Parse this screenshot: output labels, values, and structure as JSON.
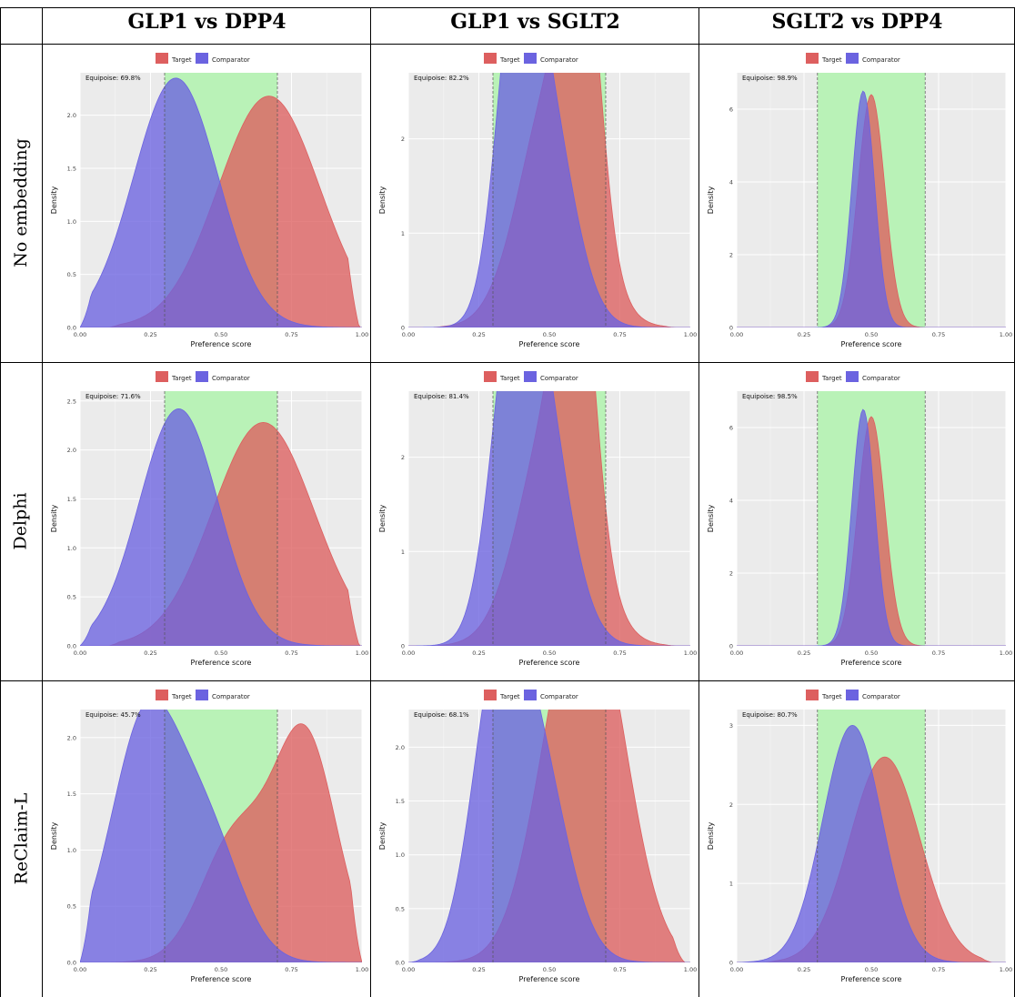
{
  "columns": [
    "GLP1 vs DPP4",
    "GLP1 vs SGLT2",
    "SGLT2 vs DPP4"
  ],
  "rows": [
    "No embedding",
    "Delphi",
    "ReClaim-L"
  ],
  "colors": {
    "target": "#dd5f5f",
    "comparator": "#6b63e0",
    "equipoise_band": "#b9f2b7",
    "panel_bg": "#ebebeb"
  },
  "chart_data": [
    {
      "type": "area",
      "row": "No embedding",
      "column": "GLP1 vs DPP4",
      "legend": [
        "Target",
        "Comparator"
      ],
      "annotation": "Equipoise: 69.8%",
      "xlabel": "Preference score",
      "ylabel": "Density",
      "xlim": [
        0,
        1
      ],
      "ylim": [
        0,
        2.4
      ],
      "yticks": [
        0,
        0.5,
        1,
        1.5,
        2
      ],
      "ytick_labels": [
        "0.0",
        "0.5",
        "1.0",
        "1.5",
        "2.0"
      ],
      "xticks": [
        0,
        0.25,
        0.5,
        0.75,
        1
      ],
      "xtick_labels": [
        "0.00",
        "0.25",
        "0.50",
        "0.75",
        "1.00"
      ],
      "equipoise": [
        0.3,
        0.7
      ],
      "series": [
        {
          "name": "Target",
          "peaks": [
            [
              0.67,
              2.18,
              0.18
            ]
          ],
          "range": [
            0.1,
            0.99
          ]
        },
        {
          "name": "Comparator",
          "peaks": [
            [
              0.34,
              2.35,
              0.15
            ]
          ],
          "range": [
            0,
            0.96
          ]
        }
      ]
    },
    {
      "type": "area",
      "row": "No embedding",
      "column": "GLP1 vs SGLT2",
      "legend": [
        "Target",
        "Comparator"
      ],
      "annotation": "Equipoise: 82.2%",
      "xlabel": "Preference score",
      "ylabel": "Density",
      "xlim": [
        0,
        1
      ],
      "ylim": [
        0,
        2.7
      ],
      "yticks": [
        0,
        1,
        2
      ],
      "ytick_labels": [
        "0",
        "1",
        "2"
      ],
      "xticks": [
        0,
        0.25,
        0.5,
        0.75,
        1
      ],
      "xtick_labels": [
        "0.00",
        "0.25",
        "0.50",
        "0.75",
        "1.00"
      ],
      "equipoise": [
        0.3,
        0.7
      ],
      "series": [
        {
          "name": "Target",
          "peaks": [
            [
              0.52,
              2.6,
              0.12
            ],
            [
              0.62,
              2.6,
              0.06
            ]
          ],
          "range": [
            0.08,
            0.95
          ]
        },
        {
          "name": "Comparator",
          "peaks": [
            [
              0.38,
              2.6,
              0.07
            ],
            [
              0.48,
              2.4,
              0.1
            ]
          ],
          "range": [
            0,
            0.9
          ]
        }
      ]
    },
    {
      "type": "area",
      "row": "No embedding",
      "column": "SGLT2 vs DPP4",
      "legend": [
        "Target",
        "Comparator"
      ],
      "annotation": "Equipoise: 98.9%",
      "xlabel": "Preference score",
      "ylabel": "Density",
      "xlim": [
        0,
        1
      ],
      "ylim": [
        0,
        7
      ],
      "yticks": [
        0,
        2,
        4,
        6
      ],
      "ytick_labels": [
        "0",
        "2",
        "4",
        "6"
      ],
      "xticks": [
        0,
        0.25,
        0.5,
        0.75,
        1
      ],
      "xtick_labels": [
        "0.00",
        "0.25",
        "0.50",
        "0.75",
        "1.00"
      ],
      "equipoise": [
        0.3,
        0.7
      ],
      "series": [
        {
          "name": "Target",
          "peaks": [
            [
              0.5,
              6.4,
              0.05
            ]
          ],
          "range": [
            0.3,
            0.8
          ]
        },
        {
          "name": "Comparator",
          "peaks": [
            [
              0.47,
              6.5,
              0.042
            ]
          ],
          "range": [
            0.15,
            0.7
          ]
        }
      ]
    },
    {
      "type": "area",
      "row": "Delphi",
      "column": "GLP1 vs DPP4",
      "legend": [
        "Target",
        "Comparator"
      ],
      "annotation": "Equipoise: 71.6%",
      "xlabel": "Preference score",
      "ylabel": "Density",
      "xlim": [
        0,
        1
      ],
      "ylim": [
        0,
        2.6
      ],
      "yticks": [
        0,
        0.5,
        1,
        1.5,
        2,
        2.5
      ],
      "ytick_labels": [
        "0.0",
        "0.5",
        "1.0",
        "1.5",
        "2.0",
        "2.5"
      ],
      "xticks": [
        0,
        0.25,
        0.5,
        0.75,
        1
      ],
      "xtick_labels": [
        "0.00",
        "0.25",
        "0.50",
        "0.75",
        "1.00"
      ],
      "equipoise": [
        0.3,
        0.7
      ],
      "series": [
        {
          "name": "Target",
          "peaks": [
            [
              0.65,
              2.28,
              0.18
            ]
          ],
          "range": [
            0.1,
            0.99
          ]
        },
        {
          "name": "Comparator",
          "peaks": [
            [
              0.35,
              2.42,
              0.14
            ]
          ],
          "range": [
            0,
            0.96
          ]
        }
      ]
    },
    {
      "type": "area",
      "row": "Delphi",
      "column": "GLP1 vs SGLT2",
      "legend": [
        "Target",
        "Comparator"
      ],
      "annotation": "Equipoise: 81.4%",
      "xlabel": "Preference score",
      "ylabel": "Density",
      "xlim": [
        0,
        1
      ],
      "ylim": [
        0,
        2.7
      ],
      "yticks": [
        0,
        1,
        2
      ],
      "ytick_labels": [
        "0",
        "1",
        "2"
      ],
      "xticks": [
        0,
        0.25,
        0.5,
        0.75,
        1
      ],
      "xtick_labels": [
        "0.00",
        "0.25",
        "0.50",
        "0.75",
        "1.00"
      ],
      "equipoise": [
        0.3,
        0.7
      ],
      "series": [
        {
          "name": "Target",
          "peaks": [
            [
              0.52,
              2.5,
              0.12
            ],
            [
              0.6,
              2.6,
              0.06
            ]
          ],
          "range": [
            0.08,
            0.95
          ]
        },
        {
          "name": "Comparator",
          "peaks": [
            [
              0.37,
              2.55,
              0.08
            ],
            [
              0.47,
              2.4,
              0.1
            ]
          ],
          "range": [
            0,
            0.9
          ]
        }
      ]
    },
    {
      "type": "area",
      "row": "Delphi",
      "column": "SGLT2 vs DPP4",
      "legend": [
        "Target",
        "Comparator"
      ],
      "annotation": "Equipoise: 98.5%",
      "xlabel": "Preference score",
      "ylabel": "Density",
      "xlim": [
        0,
        1
      ],
      "ylim": [
        0,
        7
      ],
      "yticks": [
        0,
        2,
        4,
        6
      ],
      "ytick_labels": [
        "0",
        "2",
        "4",
        "6"
      ],
      "xticks": [
        0,
        0.25,
        0.5,
        0.75,
        1
      ],
      "xtick_labels": [
        "0.00",
        "0.25",
        "0.50",
        "0.75",
        "1.00"
      ],
      "equipoise": [
        0.3,
        0.7
      ],
      "series": [
        {
          "name": "Target",
          "peaks": [
            [
              0.5,
              6.3,
              0.05
            ]
          ],
          "range": [
            0.3,
            0.8
          ]
        },
        {
          "name": "Comparator",
          "peaks": [
            [
              0.47,
              6.5,
              0.042
            ]
          ],
          "range": [
            0.15,
            0.7
          ]
        }
      ]
    },
    {
      "type": "area",
      "row": "ReClaim-L",
      "column": "GLP1 vs DPP4",
      "legend": [
        "Target",
        "Comparator"
      ],
      "annotation": "Equipoise: 45.7%",
      "xlabel": "Preference score",
      "ylabel": "Density",
      "xlim": [
        0,
        1
      ],
      "ylim": [
        0,
        2.25
      ],
      "yticks": [
        0,
        0.5,
        1,
        1.5,
        2
      ],
      "ytick_labels": [
        "0.0",
        "0.5",
        "1.0",
        "1.5",
        "2.0"
      ],
      "xticks": [
        0,
        0.25,
        0.5,
        0.75,
        1
      ],
      "xtick_labels": [
        "0.00",
        "0.25",
        "0.50",
        "0.75",
        "1.00"
      ],
      "equipoise": [
        0.3,
        0.7
      ],
      "series": [
        {
          "name": "Target",
          "peaks": [
            [
              0.8,
              1.98,
              0.11
            ],
            [
              0.55,
              1.1,
              0.12
            ]
          ],
          "range": [
            0,
            1
          ]
        },
        {
          "name": "Comparator",
          "peaks": [
            [
              0.23,
              2.1,
              0.12
            ],
            [
              0.45,
              1.1,
              0.12
            ]
          ],
          "range": [
            0,
            1
          ]
        }
      ]
    },
    {
      "type": "area",
      "row": "ReClaim-L",
      "column": "GLP1 vs SGLT2",
      "legend": [
        "Target",
        "Comparator"
      ],
      "annotation": "Equipoise: 68.1%",
      "xlabel": "Preference score",
      "ylabel": "Density",
      "xlim": [
        0,
        1
      ],
      "ylim": [
        0,
        2.35
      ],
      "yticks": [
        0,
        0.5,
        1,
        1.5,
        2
      ],
      "ytick_labels": [
        "0.0",
        "0.5",
        "1.0",
        "1.5",
        "2.0"
      ],
      "xticks": [
        0,
        0.25,
        0.5,
        0.75,
        1
      ],
      "xtick_labels": [
        "0.00",
        "0.25",
        "0.50",
        "0.75",
        "1.00"
      ],
      "equipoise": [
        0.3,
        0.7
      ],
      "series": [
        {
          "name": "Target",
          "peaks": [
            [
              0.68,
              2.25,
              0.12
            ],
            [
              0.55,
              1.8,
              0.12
            ]
          ],
          "range": [
            0.05,
            0.98
          ]
        },
        {
          "name": "Comparator",
          "peaks": [
            [
              0.31,
              2.2,
              0.09
            ],
            [
              0.45,
              1.9,
              0.11
            ]
          ],
          "range": [
            0,
            0.95
          ]
        }
      ]
    },
    {
      "type": "area",
      "row": "ReClaim-L",
      "column": "SGLT2 vs DPP4",
      "legend": [
        "Target",
        "Comparator"
      ],
      "annotation": "Equipoise: 80.7%",
      "xlabel": "Preference score",
      "ylabel": "Density",
      "xlim": [
        0,
        1
      ],
      "ylim": [
        0,
        3.2
      ],
      "yticks": [
        0,
        1,
        2,
        3
      ],
      "ytick_labels": [
        "0",
        "1",
        "2",
        "3"
      ],
      "xticks": [
        0,
        0.25,
        0.5,
        0.75,
        1
      ],
      "xtick_labels": [
        "0.00",
        "0.25",
        "0.50",
        "0.75",
        "1.00"
      ],
      "equipoise": [
        0.3,
        0.7
      ],
      "series": [
        {
          "name": "Target",
          "peaks": [
            [
              0.55,
              2.6,
              0.13
            ]
          ],
          "range": [
            0.1,
            0.95
          ]
        },
        {
          "name": "Comparator",
          "peaks": [
            [
              0.43,
              3.0,
              0.11
            ]
          ],
          "range": [
            0,
            0.85
          ]
        }
      ]
    }
  ]
}
